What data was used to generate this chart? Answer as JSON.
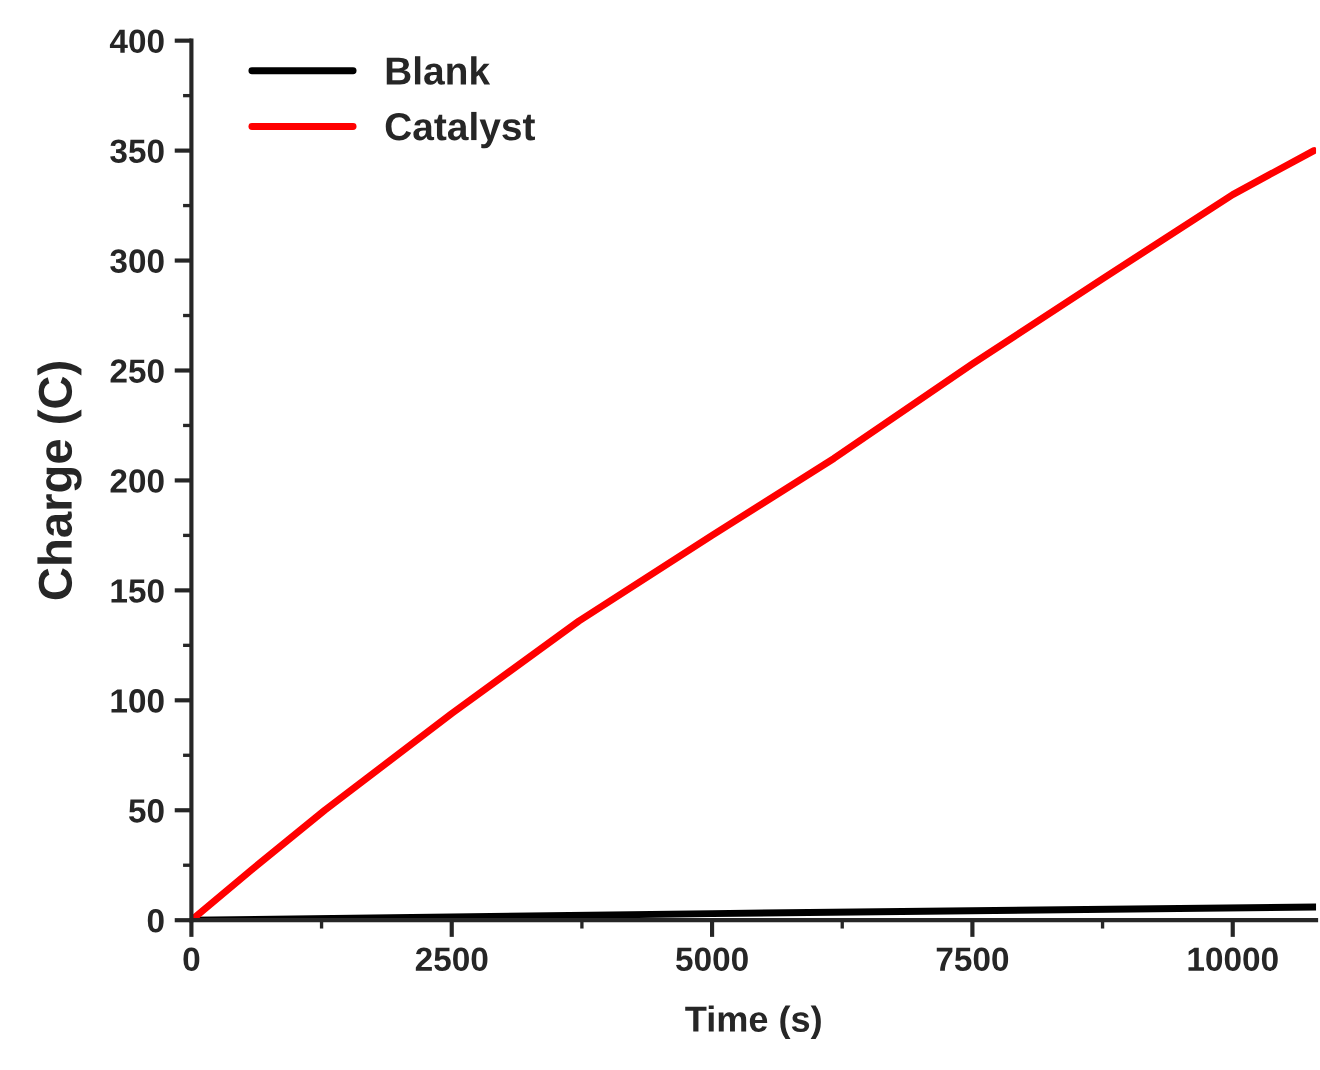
{
  "chart_data": {
    "type": "line",
    "xlabel": "Time (s)",
    "ylabel": "Charge (C)",
    "xlim": [
      0,
      10800
    ],
    "ylim": [
      0,
      400
    ],
    "xticks": [
      0,
      {
        "value": 1250,
        "label": null
      },
      2500,
      {
        "value": 3750,
        "label": null
      },
      5000,
      {
        "value": 6250,
        "label": null
      },
      7500,
      {
        "value": 8750,
        "label": null
      },
      10000
    ],
    "yticks": [
      0,
      {
        "value": 25,
        "label": null
      },
      50,
      {
        "value": 75,
        "label": null
      },
      100,
      {
        "value": 125,
        "label": null
      },
      150,
      {
        "value": 175,
        "label": null
      },
      200,
      {
        "value": 225,
        "label": null
      },
      250,
      {
        "value": 275,
        "label": null
      },
      300,
      {
        "value": 325,
        "label": null
      },
      350,
      {
        "value": 375,
        "label": null
      },
      400
    ],
    "legend": "top left",
    "grid": false,
    "series": [
      {
        "name": "Blank",
        "color": "#000000",
        "x": [
          0,
          5000,
          10800
        ],
        "values": [
          0,
          3,
          6
        ]
      },
      {
        "name": "Catalyst",
        "color": "#ff0000",
        "x": [
          0,
          580,
          1280,
          2500,
          3720,
          5000,
          6170,
          7500,
          8760,
          10000,
          10780
        ],
        "values": [
          0,
          23,
          50,
          94,
          136,
          175,
          210,
          253,
          292,
          330,
          350
        ]
      }
    ]
  }
}
